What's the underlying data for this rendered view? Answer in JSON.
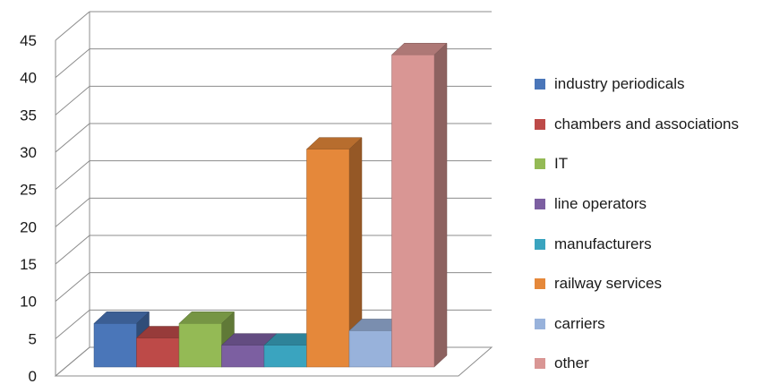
{
  "chart_data": {
    "type": "bar",
    "style": "3d-column",
    "categories": [
      "industry periodicals",
      "chambers and associations",
      "IT",
      "line operators",
      "manufacturers",
      "railway services",
      "carriers",
      "other"
    ],
    "values": [
      6,
      4,
      6,
      3,
      3,
      30,
      5,
      43
    ],
    "colors": [
      "#4a76b9",
      "#bd4a48",
      "#94ba55",
      "#7c5fa1",
      "#3aa4bf",
      "#e5883a",
      "#98b2db",
      "#d99694"
    ],
    "ylim": [
      0,
      45
    ],
    "yticks": [
      "0",
      "5",
      "10",
      "15",
      "20",
      "25",
      "30",
      "35",
      "40",
      "45"
    ],
    "grid": true,
    "legend_position": "right"
  }
}
